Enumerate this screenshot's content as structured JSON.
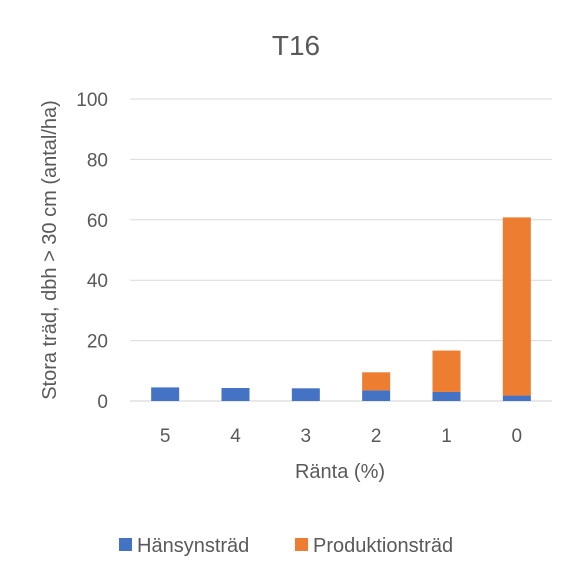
{
  "chart_data": {
    "type": "bar",
    "stacked": true,
    "title": "T16",
    "xlabel": "Ränta (%)",
    "ylabel": "Stora träd, dbh > 30 cm (antal/ha)",
    "categories": [
      "5",
      "4",
      "3",
      "2",
      "1",
      "0"
    ],
    "series": [
      {
        "name": "Hänsynsträd",
        "color": "#4472c4",
        "values": [
          4.5,
          4.3,
          4.2,
          3.5,
          3.0,
          1.8
        ]
      },
      {
        "name": "Produktionsträd",
        "color": "#ed7d31",
        "values": [
          0.0,
          0.0,
          0.0,
          6.0,
          13.7,
          59.0
        ]
      }
    ],
    "ylim": [
      0,
      100
    ],
    "yticks": [
      "0",
      "20",
      "40",
      "60",
      "80",
      "100"
    ],
    "grid": true,
    "legend": "bottom"
  }
}
